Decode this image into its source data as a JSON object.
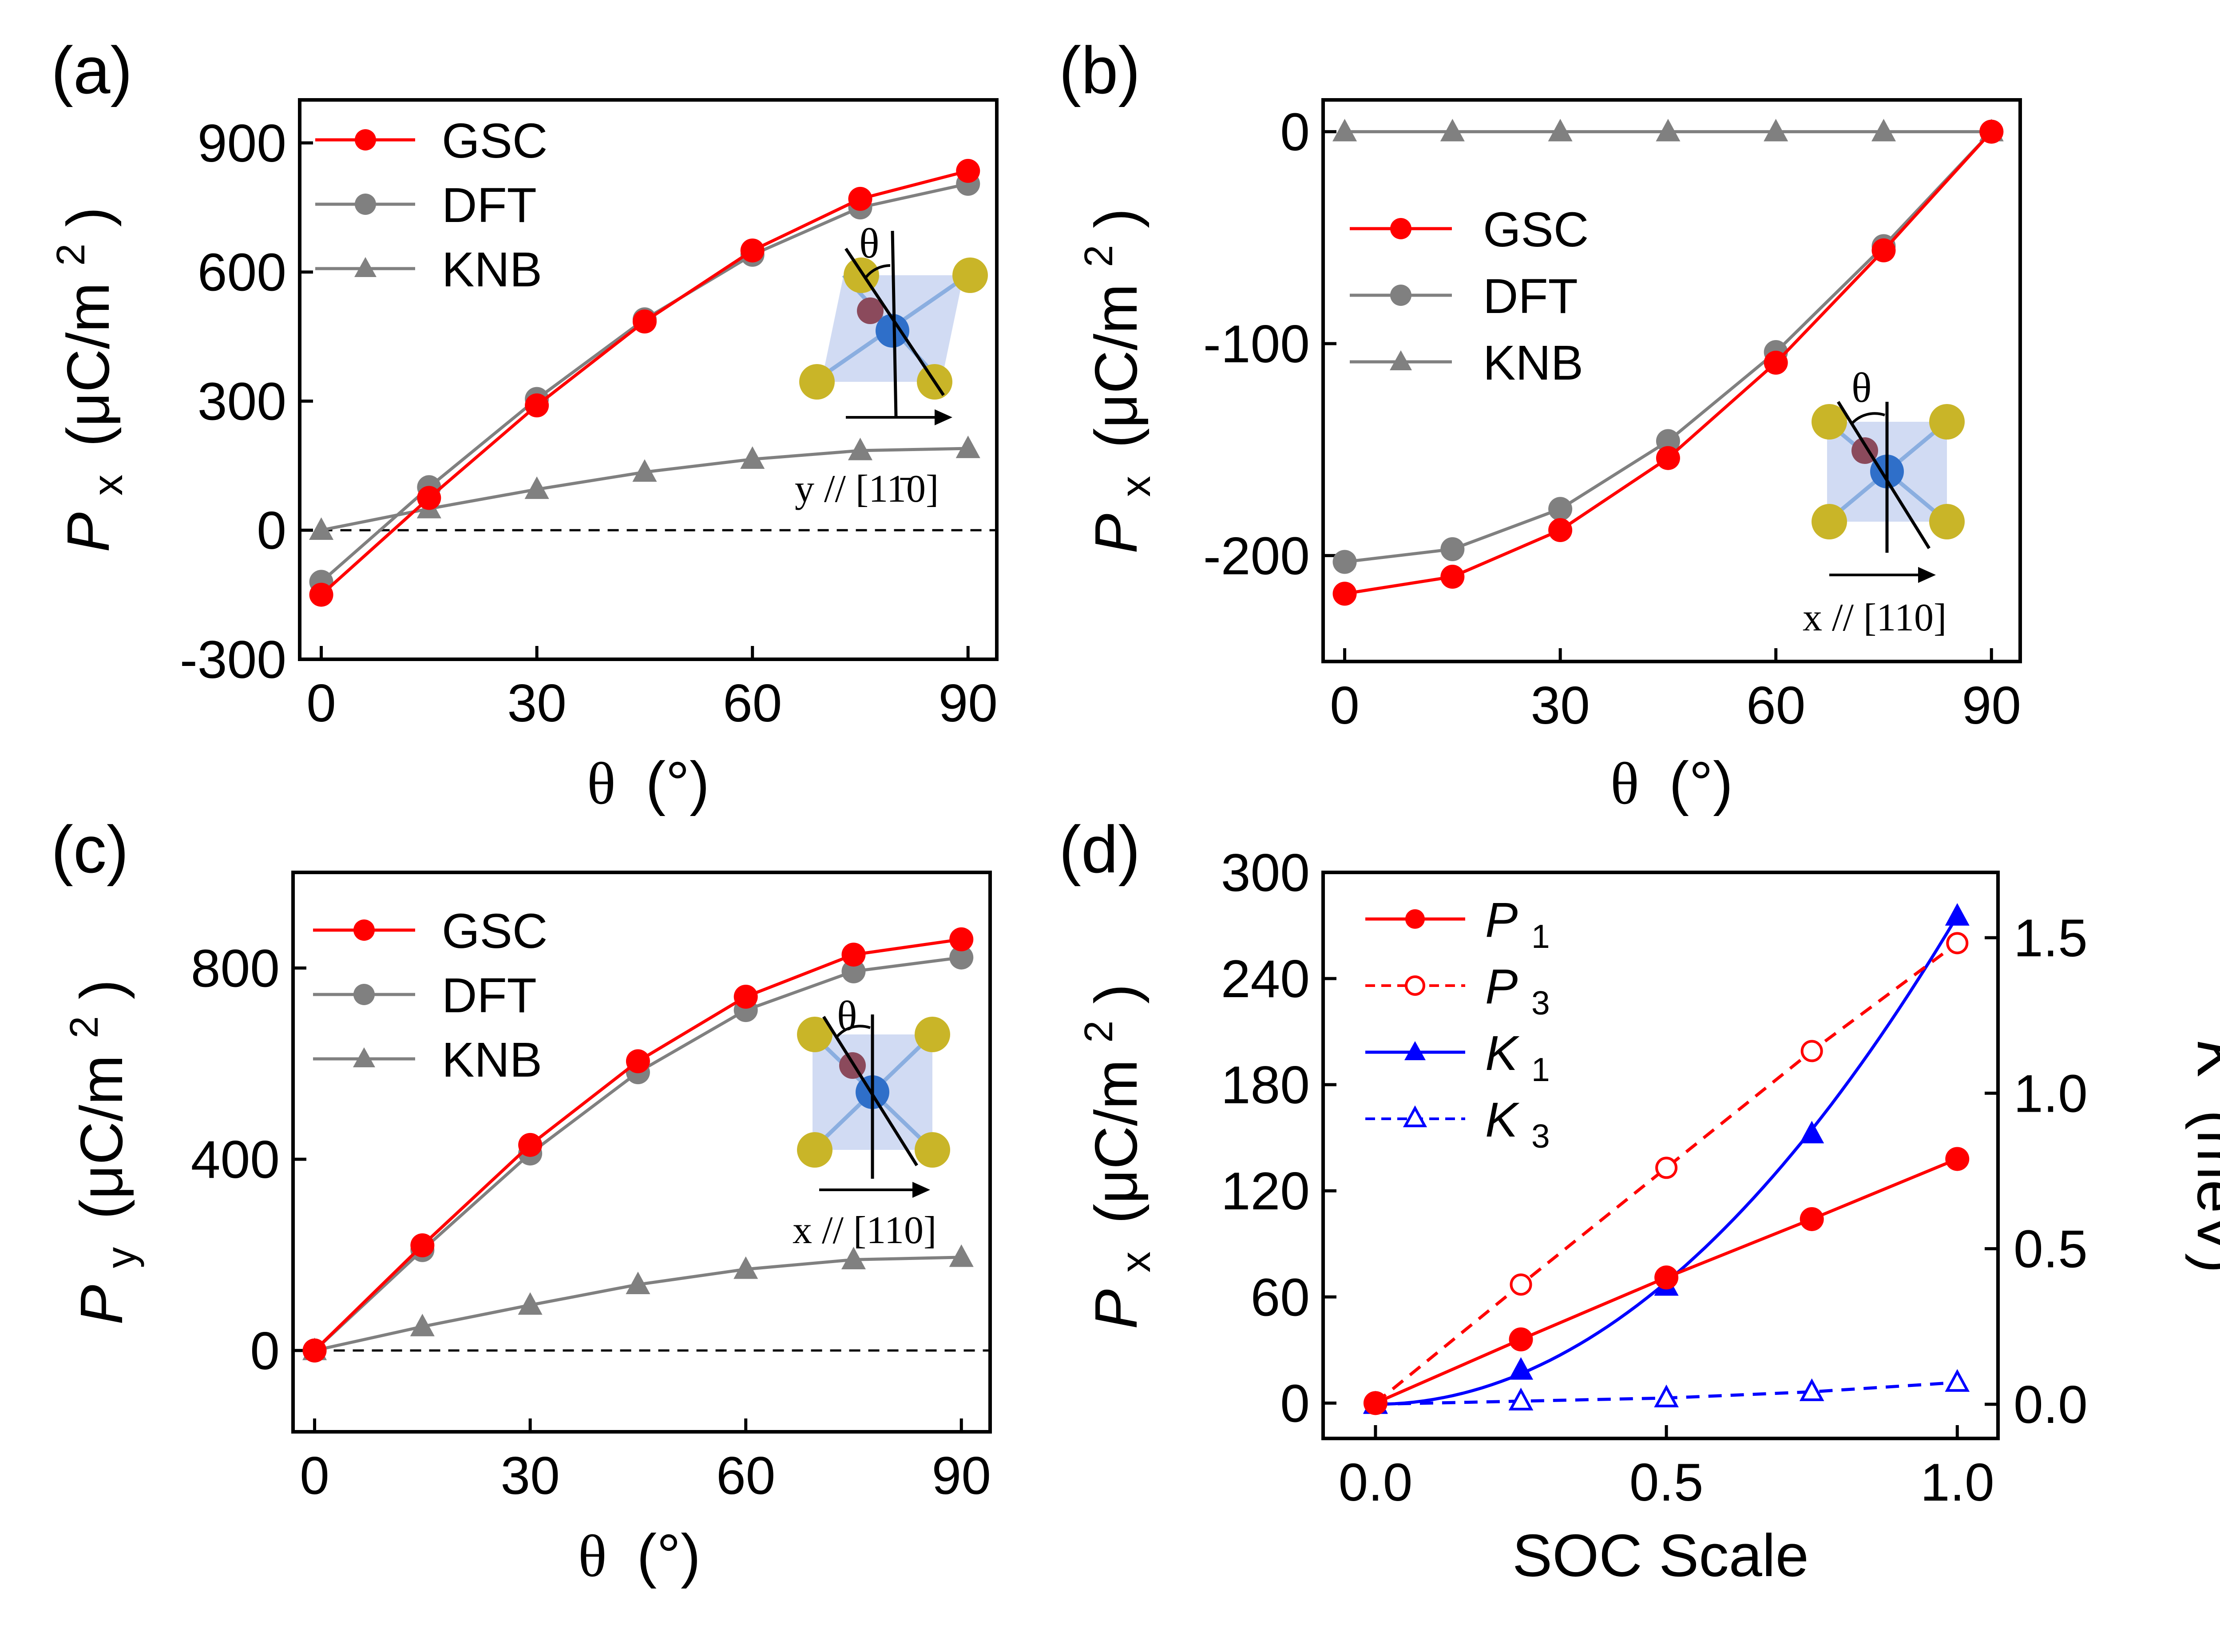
{
  "chart_data": [
    {
      "panel": "(a)",
      "type": "line",
      "xlabel": "θ (°)",
      "ylabel": "Px (μC/m2)",
      "ylabel_parts": {
        "symbol": "P",
        "sub": "x",
        "unit": "(μC/m",
        "sup": "2",
        "close": ")"
      },
      "xlabel_parts": {
        "symbol": "θ",
        "unit": "(°)"
      },
      "xlim": [
        -3,
        94
      ],
      "ylim": [
        -300,
        1000
      ],
      "xticks": [
        0,
        30,
        60,
        90
      ],
      "yticks": [
        -300,
        0,
        300,
        600,
        900
      ],
      "x": [
        0,
        15,
        30,
        45,
        60,
        75,
        90
      ],
      "series": [
        {
          "name": "GSC",
          "color": "#ff0000",
          "marker": "circle",
          "values": [
            -150,
            75,
            290,
            485,
            650,
            770,
            835
          ]
        },
        {
          "name": "DFT",
          "color": "#808080",
          "marker": "circle",
          "values": [
            -120,
            100,
            305,
            490,
            640,
            750,
            805
          ]
        },
        {
          "name": "KNB",
          "color": "#808080",
          "marker": "triangle",
          "values": [
            0,
            50,
            95,
            135,
            165,
            185,
            190
          ]
        }
      ],
      "zero_line": true,
      "inset": {
        "angle_label": "θ",
        "axis_label": "y // [11̄0]"
      }
    },
    {
      "panel": "(b)",
      "type": "line",
      "xlabel": "θ (°)",
      "ylabel": "Px (μC/m2)",
      "ylabel_parts": {
        "symbol": "P",
        "sub": "x",
        "unit": "(μC/m",
        "sup": "2",
        "close": ")"
      },
      "xlabel_parts": {
        "symbol": "θ",
        "unit": "(°)"
      },
      "xlim": [
        -3,
        94
      ],
      "ylim": [
        -250,
        15
      ],
      "xticks": [
        0,
        30,
        60,
        90
      ],
      "yticks": [
        -200,
        -100,
        0
      ],
      "x": [
        0,
        15,
        30,
        45,
        60,
        75,
        90
      ],
      "series": [
        {
          "name": "GSC",
          "color": "#ff0000",
          "marker": "circle",
          "values": [
            -218,
            -210,
            -188,
            -154,
            -109,
            -56,
            0
          ]
        },
        {
          "name": "DFT",
          "color": "#808080",
          "marker": "circle",
          "values": [
            -203,
            -197,
            -178,
            -146,
            -104,
            -54,
            0
          ]
        },
        {
          "name": "KNB",
          "color": "#808080",
          "marker": "triangle",
          "values": [
            0,
            0,
            0,
            0,
            0,
            0,
            0
          ]
        }
      ],
      "zero_line": false,
      "inset": {
        "angle_label": "θ",
        "axis_label": "x // [110]"
      }
    },
    {
      "panel": "(c)",
      "type": "line",
      "xlabel": "θ (°)",
      "ylabel": "Py (μC/m2)",
      "ylabel_parts": {
        "symbol": "P",
        "sub": "y",
        "unit": "(μC/m",
        "sup": "2",
        "close": ")"
      },
      "xlabel_parts": {
        "symbol": "θ",
        "unit": "(°)"
      },
      "xlim": [
        -3,
        94
      ],
      "ylim": [
        -170,
        1000
      ],
      "xticks": [
        0,
        30,
        60,
        90
      ],
      "yticks": [
        0,
        400,
        800
      ],
      "x": [
        0,
        15,
        30,
        45,
        60,
        75,
        90
      ],
      "series": [
        {
          "name": "GSC",
          "color": "#ff0000",
          "marker": "circle",
          "values": [
            0,
            220,
            430,
            605,
            740,
            828,
            860
          ]
        },
        {
          "name": "DFT",
          "color": "#808080",
          "marker": "circle",
          "values": [
            0,
            210,
            412,
            582,
            712,
            793,
            822
          ]
        },
        {
          "name": "KNB",
          "color": "#808080",
          "marker": "triangle",
          "values": [
            0,
            50,
            95,
            138,
            170,
            190,
            195
          ]
        }
      ],
      "zero_line": true,
      "inset": {
        "angle_label": "θ",
        "axis_label": "x // [110]"
      }
    },
    {
      "panel": "(d)",
      "type": "line",
      "xlabel": "SOC Scale",
      "ylabel": "Px (μC/m2)",
      "ylabel_parts": {
        "symbol": "P",
        "sub": "x",
        "unit": "(μC/m",
        "sup": "2",
        "close": ")"
      },
      "y2label": "K (meV)",
      "y2label_parts": {
        "symbol": "K",
        "unit": "(meV)"
      },
      "xlim": [
        -0.09,
        1.07
      ],
      "ylim": [
        -20,
        300
      ],
      "y2lim": [
        -0.11,
        1.71
      ],
      "xticks": [
        0.0,
        0.5,
        1.0
      ],
      "xticklabels": [
        "0.0",
        "0.5",
        "1.0"
      ],
      "yticks": [
        0,
        60,
        120,
        180,
        240,
        300
      ],
      "y2ticks": [
        0.0,
        0.5,
        1.0,
        1.5
      ],
      "y2ticklabels": [
        "0.0",
        "0.5",
        "1.0",
        "1.5"
      ],
      "x": [
        0,
        0.25,
        0.5,
        0.75,
        1.0
      ],
      "series": [
        {
          "name": "P1",
          "label_symbol": "P",
          "label_sub": "1",
          "axis": "left",
          "color": "#ff0000",
          "marker": "circle",
          "filled": true,
          "dashed": false,
          "values": [
            0,
            36,
            71,
            104,
            138
          ]
        },
        {
          "name": "P3",
          "label_symbol": "P",
          "label_sub": "3",
          "axis": "left",
          "color": "#ff0000",
          "marker": "circle",
          "filled": false,
          "dashed": true,
          "values": [
            0,
            67,
            133,
            199,
            260
          ]
        },
        {
          "name": "K1",
          "label_symbol": "K",
          "label_sub": "1",
          "axis": "right",
          "color": "#0000ff",
          "marker": "triangle",
          "filled": true,
          "dashed": false,
          "curve": "smooth",
          "values": [
            0,
            0.11,
            0.38,
            0.87,
            1.57
          ]
        },
        {
          "name": "K3",
          "label_symbol": "K",
          "label_sub": "3",
          "axis": "right",
          "color": "#0000ff",
          "marker": "triangle",
          "filled": false,
          "dashed": true,
          "values": [
            0,
            0.01,
            0.02,
            0.04,
            0.07
          ]
        }
      ]
    }
  ]
}
